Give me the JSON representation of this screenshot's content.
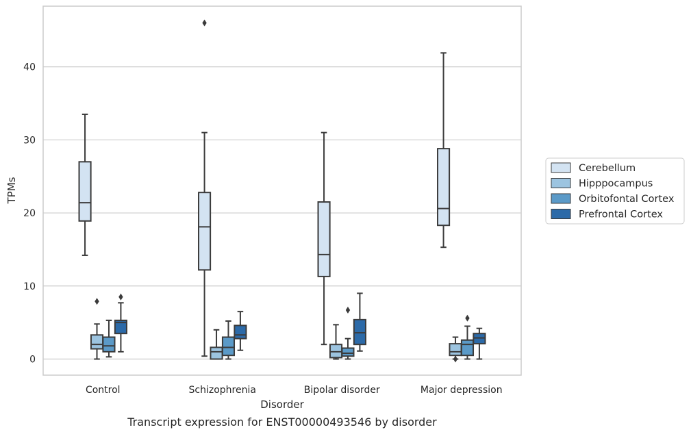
{
  "chart_data": {
    "type": "box",
    "caption": "Transcript expression for ENST00000493546 by disorder",
    "xlabel": "Disorder",
    "ylabel": "TPMs",
    "ylim": [
      -2.2,
      48.3
    ],
    "yticks": [
      0,
      10,
      20,
      30,
      40
    ],
    "grid": true,
    "legend_position": "right, outside plot",
    "categories": [
      "Control",
      "Schizophrenia",
      "Bipolar disorder",
      "Major depression"
    ],
    "series": [
      {
        "name": "Cerebellum",
        "color": "#d3e3f2",
        "boxes": [
          {
            "whisker_low": 14.2,
            "q1": 18.9,
            "median": 21.4,
            "q3": 27.0,
            "whisker_high": 33.5,
            "outliers": []
          },
          {
            "whisker_low": 0.4,
            "q1": 12.2,
            "median": 18.1,
            "q3": 22.8,
            "whisker_high": 31.0,
            "outliers": [
              46.0
            ]
          },
          {
            "whisker_low": 2.0,
            "q1": 11.3,
            "median": 14.3,
            "q3": 21.5,
            "whisker_high": 31.0,
            "outliers": []
          },
          {
            "whisker_low": 15.3,
            "q1": 18.3,
            "median": 20.6,
            "q3": 28.8,
            "whisker_high": 41.9,
            "outliers": []
          }
        ]
      },
      {
        "name": "Hipppocampus",
        "color": "#9cc4e0",
        "boxes": [
          {
            "whisker_low": 0.0,
            "q1": 1.4,
            "median": 2.0,
            "q3": 3.3,
            "whisker_high": 4.8,
            "outliers": [
              7.9
            ]
          },
          {
            "whisker_low": 0.0,
            "q1": 0.0,
            "median": 1.0,
            "q3": 1.6,
            "whisker_high": 4.0,
            "outliers": []
          },
          {
            "whisker_low": 0.0,
            "q1": 0.2,
            "median": 1.0,
            "q3": 2.0,
            "whisker_high": 4.7,
            "outliers": []
          },
          {
            "whisker_low": 0.0,
            "q1": 0.5,
            "median": 1.0,
            "q3": 2.1,
            "whisker_high": 3.0,
            "outliers": [
              0.0
            ]
          }
        ]
      },
      {
        "name": "Orbitofontal Cortex",
        "color": "#5b9ac8",
        "boxes": [
          {
            "whisker_low": 0.3,
            "q1": 1.0,
            "median": 1.8,
            "q3": 3.0,
            "whisker_high": 5.3,
            "outliers": []
          },
          {
            "whisker_low": 0.0,
            "q1": 0.5,
            "median": 1.6,
            "q3": 3.0,
            "whisker_high": 5.2,
            "outliers": []
          },
          {
            "whisker_low": 0.0,
            "q1": 0.4,
            "median": 0.8,
            "q3": 1.5,
            "whisker_high": 2.8,
            "outliers": [
              6.7
            ]
          },
          {
            "whisker_low": 0.0,
            "q1": 0.5,
            "median": 2.0,
            "q3": 2.6,
            "whisker_high": 4.5,
            "outliers": [
              5.6
            ]
          }
        ]
      },
      {
        "name": "Prefrontal Cortex",
        "color": "#2c6aa8",
        "boxes": [
          {
            "whisker_low": 1.0,
            "q1": 3.5,
            "median": 5.0,
            "q3": 5.3,
            "whisker_high": 7.7,
            "outliers": [
              8.5
            ]
          },
          {
            "whisker_low": 1.2,
            "q1": 2.8,
            "median": 3.3,
            "q3": 4.6,
            "whisker_high": 6.5,
            "outliers": []
          },
          {
            "whisker_low": 1.1,
            "q1": 2.0,
            "median": 3.6,
            "q3": 5.4,
            "whisker_high": 9.0,
            "outliers": []
          },
          {
            "whisker_low": 0.0,
            "q1": 2.1,
            "median": 2.9,
            "q3": 3.5,
            "whisker_high": 4.2,
            "outliers": []
          }
        ]
      }
    ]
  }
}
